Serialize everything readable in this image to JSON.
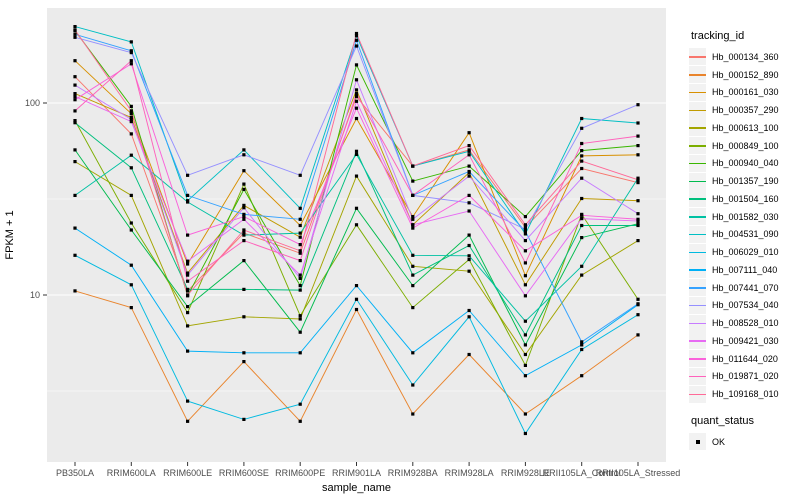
{
  "chart_data": {
    "type": "line",
    "title": "",
    "xlabel": "sample_name",
    "ylabel": "FPKM + 1",
    "y_scale": "log10",
    "y_tick_values": [
      10,
      100
    ],
    "y_tick_labels": [
      "10",
      "100"
    ],
    "y_minor_gridlines": [
      3.1623,
      31.623,
      316.23
    ],
    "ylim": [
      1.35,
      320
    ],
    "grid": true,
    "panel_bg": "#EBEBEB",
    "gridline_color": "#FFFFFF",
    "tick_label_color": "#4D4D4D",
    "axis_title_color": "#000000",
    "point_marker": "black-square",
    "legend_position": "right",
    "legend_title": "tracking_id",
    "categories": [
      "PB350LA",
      "RRIM600LA",
      "RRIM600LE",
      "RRIM600SE",
      "RRIM600PE",
      "RRIM901LA",
      "RRIM928BA",
      "RRIM928LA",
      "RRIM928LE",
      "RRII105LA_Control",
      "RRII105LA_Stressed"
    ],
    "series": [
      {
        "name": "Hb_000134_360",
        "color": "#F8766D",
        "values": [
          137,
          69,
          10.5,
          21,
          16.5,
          108,
          46.9,
          57,
          22.5,
          45.6,
          38.5
        ]
      },
      {
        "name": "Hb_000152_890",
        "color": "#E9842C",
        "values": [
          10.5,
          8.6,
          2.2,
          4.5,
          2.2,
          8.4,
          2.4,
          4.9,
          2.4,
          3.8,
          6.2
        ]
      },
      {
        "name": "Hb_000161_030",
        "color": "#D89000",
        "values": [
          166,
          88,
          14.5,
          44.4,
          23,
          83,
          25.6,
          70,
          12.6,
          53,
          53.7
        ]
      },
      {
        "name": "Hb_000357_290",
        "color": "#C09B00",
        "values": [
          112,
          84,
          13,
          29.3,
          20,
          117,
          23.2,
          43.4,
          11.3,
          31.8,
          31
        ]
      },
      {
        "name": "Hb_000613_100",
        "color": "#A3A500",
        "values": [
          49.5,
          33,
          6.9,
          7.7,
          7.5,
          41.6,
          14.1,
          13.3,
          4.9,
          12.7,
          19.2
        ]
      },
      {
        "name": "Hb_000849_100",
        "color": "#7CAE00",
        "values": [
          81,
          23.7,
          8.1,
          37.8,
          7.8,
          23.2,
          8.6,
          15.3,
          4.3,
          26.3,
          9.5
        ]
      },
      {
        "name": "Hb_000940_040",
        "color": "#39B600",
        "values": [
          238,
          96,
          9.9,
          35.5,
          11.2,
          158,
          39.2,
          46.9,
          25.6,
          56.5,
          60
        ]
      },
      {
        "name": "Hb_001357_190",
        "color": "#00BB4E",
        "values": [
          57,
          21.8,
          8.7,
          15.1,
          6.4,
          28.3,
          11.2,
          20.5,
          5.5,
          19.9,
          23.5
        ]
      },
      {
        "name": "Hb_001504_160",
        "color": "#00BF7D",
        "values": [
          79,
          46,
          10.7,
          10.7,
          10.6,
          56,
          12.7,
          18.1,
          6.2,
          23,
          23
        ]
      },
      {
        "name": "Hb_001582_030",
        "color": "#00C1A3",
        "values": [
          33,
          53.5,
          30.5,
          20.5,
          21,
          54,
          16.1,
          16,
          7.3,
          14.1,
          40.6
        ]
      },
      {
        "name": "Hb_004531_090",
        "color": "#00BFC4",
        "values": [
          250,
          208,
          31,
          57,
          28.3,
          224,
          46.9,
          56,
          20.8,
          83,
          78.7
        ]
      },
      {
        "name": "Hb_006029_010",
        "color": "#00BAE0",
        "values": [
          16.1,
          11.3,
          2.8,
          2.25,
          2.7,
          9.5,
          3.4,
          7.7,
          1.9,
          5.2,
          7.9
        ]
      },
      {
        "name": "Hb_007111_040",
        "color": "#00B0F6",
        "values": [
          22.3,
          14.3,
          5.1,
          5,
          5,
          11.2,
          5,
          8.3,
          3.8,
          5.5,
          8.9
        ]
      },
      {
        "name": "Hb_007441_070",
        "color": "#35A2FF",
        "values": [
          228,
          187,
          33,
          26.3,
          24.8,
          212,
          33,
          44,
          21.5,
          5.7,
          9
        ]
      },
      {
        "name": "Hb_007534_040",
        "color": "#9590FF",
        "values": [
          220,
          183,
          42,
          53.7,
          42,
          198,
          33,
          30.2,
          22,
          73.8,
          98
        ]
      },
      {
        "name": "Hb_008528_010",
        "color": "#C77CFF",
        "values": [
          124,
          82,
          12.7,
          28.5,
          12.2,
          132,
          24.8,
          41.6,
          19.2,
          40.6,
          26.5
        ]
      },
      {
        "name": "Hb_009421_030",
        "color": "#E76BF3",
        "values": [
          108,
          80,
          15,
          24.8,
          12.7,
          102,
          23.2,
          27.4,
          9.9,
          25,
          24.3
        ]
      },
      {
        "name": "Hb_011644_020",
        "color": "#FA62DB",
        "values": [
          104,
          160,
          20.5,
          25.6,
          18.3,
          94,
          22.3,
          33,
          17,
          26,
          24.8
        ]
      },
      {
        "name": "Hb_019871_020",
        "color": "#FF62BC",
        "values": [
          91,
          166,
          11.8,
          19.2,
          15.1,
          112,
          33,
          53.7,
          14.7,
          61.5,
          67.2
        ]
      },
      {
        "name": "Hb_109168_010",
        "color": "#FF6A98",
        "values": [
          240,
          91,
          10,
          21.8,
          17,
          230,
          47,
          60,
          23.2,
          49.8,
          39.8
        ]
      }
    ],
    "legend2": {
      "title": "quant_status",
      "items": [
        {
          "label": "OK",
          "marker": "black-square"
        }
      ]
    }
  }
}
